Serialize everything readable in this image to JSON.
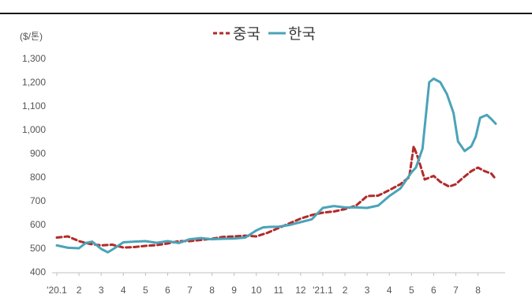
{
  "chart_data": {
    "type": "line",
    "title": "",
    "unit_label": "($/톤)",
    "xlabel": "",
    "ylabel": "",
    "ylim": [
      400,
      1300
    ],
    "yticks": [
      400,
      500,
      600,
      700,
      800,
      900,
      1000,
      1100,
      1200,
      1300
    ],
    "ytick_labels": [
      "400",
      "500",
      "600",
      "700",
      "800",
      "900",
      "1,000",
      "1,100",
      "1,200",
      "1,300"
    ],
    "xlim": [
      0,
      19.8
    ],
    "xticks": [
      {
        "label": "'20.1",
        "pos": 0
      },
      {
        "label": "2",
        "pos": 1
      },
      {
        "label": "3",
        "pos": 2
      },
      {
        "label": "4",
        "pos": 3
      },
      {
        "label": "5",
        "pos": 4
      },
      {
        "label": "6",
        "pos": 5
      },
      {
        "label": "7",
        "pos": 6
      },
      {
        "label": "8",
        "pos": 7
      },
      {
        "label": "9",
        "pos": 8
      },
      {
        "label": "10",
        "pos": 9
      },
      {
        "label": "11",
        "pos": 10
      },
      {
        "label": "12",
        "pos": 11
      },
      {
        "label": "'21.1",
        "pos": 12
      },
      {
        "label": "2",
        "pos": 13
      },
      {
        "label": "3",
        "pos": 14
      },
      {
        "label": "4",
        "pos": 15
      },
      {
        "label": "5",
        "pos": 16
      },
      {
        "label": "6",
        "pos": 17
      },
      {
        "label": "7",
        "pos": 18
      },
      {
        "label": "8",
        "pos": 19
      }
    ],
    "legend_position": "top",
    "grid": false,
    "series": [
      {
        "name": "중국",
        "color": "#b22a2a",
        "style": "dashed",
        "x": [
          0,
          0.5,
          1,
          1.5,
          2,
          2.5,
          3,
          3.5,
          4,
          4.5,
          5,
          5.5,
          6,
          6.5,
          7,
          7.5,
          8,
          8.5,
          9,
          9.5,
          10,
          10.5,
          11,
          11.5,
          12,
          12.5,
          13,
          13.5,
          14,
          14.5,
          15,
          15.5,
          15.9,
          16.1,
          16.3,
          16.6,
          17,
          17.3,
          17.7,
          18,
          18.3,
          18.7,
          19,
          19.3,
          19.6,
          19.8
        ],
        "values": [
          545,
          550,
          530,
          518,
          512,
          515,
          503,
          505,
          510,
          513,
          520,
          530,
          530,
          535,
          540,
          548,
          550,
          553,
          550,
          565,
          585,
          605,
          625,
          640,
          650,
          655,
          665,
          680,
          720,
          722,
          745,
          770,
          800,
          930,
          880,
          790,
          805,
          780,
          760,
          770,
          795,
          825,
          840,
          825,
          815,
          792
        ]
      },
      {
        "name": "한국",
        "color": "#4ba3b8",
        "style": "solid",
        "x": [
          0,
          0.5,
          1,
          1.3,
          1.6,
          2,
          2.3,
          2.6,
          3,
          3.5,
          4,
          4.5,
          5,
          5.5,
          6,
          6.5,
          7,
          7.5,
          8,
          8.5,
          9,
          9.3,
          9.6,
          10,
          10.5,
          11,
          11.5,
          12,
          12.5,
          13,
          13.5,
          14,
          14.5,
          15,
          15.5,
          16,
          16.2,
          16.5,
          16.8,
          17,
          17.3,
          17.6,
          17.9,
          18.1,
          18.4,
          18.7,
          18.9,
          19.1,
          19.4,
          19.6,
          19.8
        ],
        "values": [
          512,
          502,
          500,
          522,
          528,
          497,
          483,
          500,
          525,
          528,
          530,
          523,
          530,
          522,
          538,
          543,
          538,
          540,
          541,
          545,
          575,
          588,
          590,
          591,
          598,
          610,
          622,
          670,
          678,
          672,
          672,
          670,
          680,
          720,
          752,
          820,
          840,
          920,
          1200,
          1215,
          1200,
          1150,
          1070,
          950,
          910,
          930,
          970,
          1050,
          1062,
          1045,
          1025
        ]
      }
    ]
  }
}
